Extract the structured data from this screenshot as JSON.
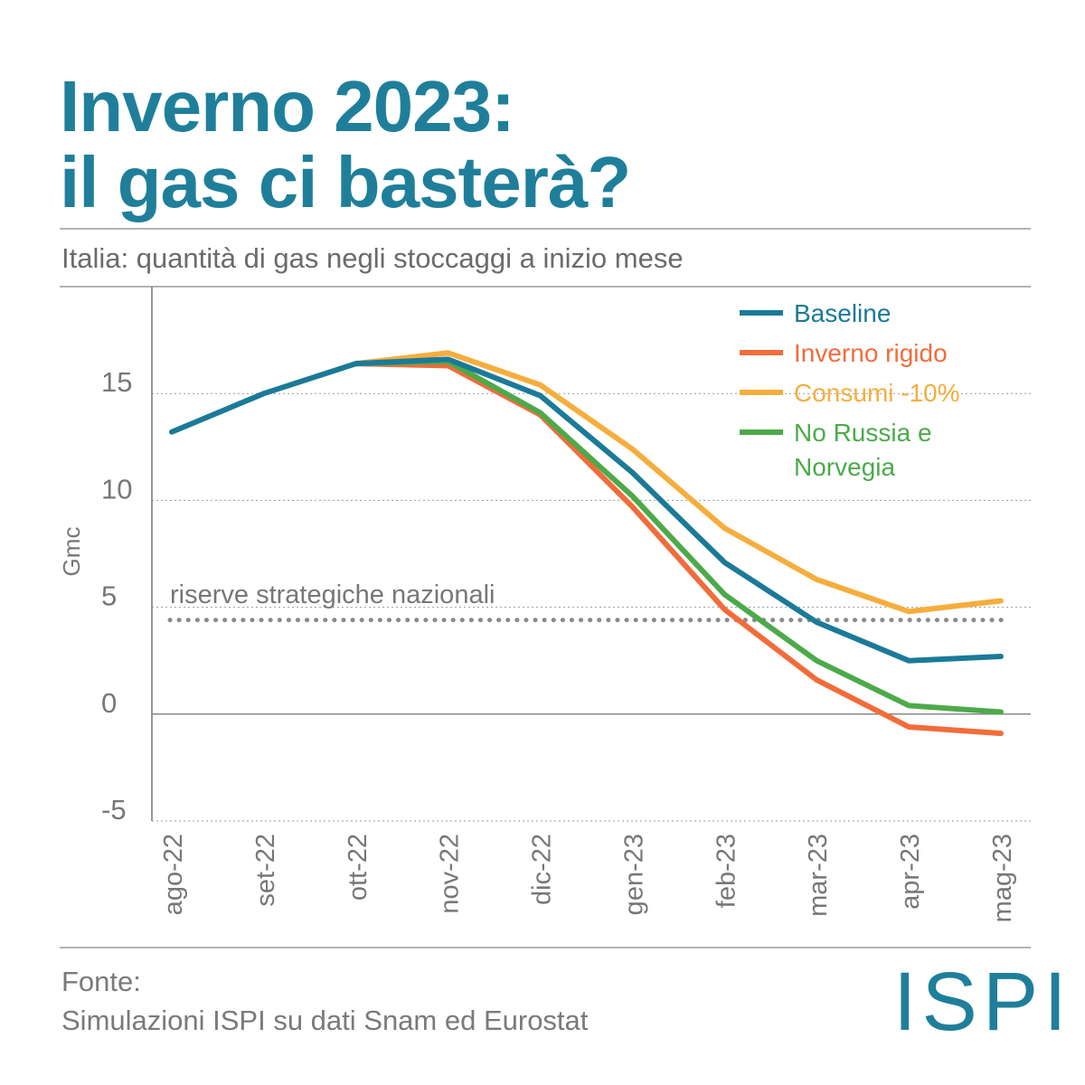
{
  "header": {
    "title": [
      "Inverno 2023:",
      "il gas ci basterà?"
    ],
    "subtitle": "Italia: quantità di gas negli stoccaggi a inizio mese"
  },
  "chart_data": {
    "type": "line",
    "y_label": "Gmc",
    "categories": [
      "ago-22",
      "set-22",
      "ott-22",
      "nov-22",
      "dic-22",
      "gen-23",
      "feb-23",
      "mar-23",
      "apr-23",
      "mag-23"
    ],
    "series": [
      {
        "name": "Baseline",
        "color": "#1b7a98",
        "values": [
          13.2,
          15.0,
          16.4,
          16.6,
          14.9,
          11.3,
          7.1,
          4.3,
          2.5,
          2.7
        ]
      },
      {
        "name": "Inverno rigido",
        "color": "#f26c3a",
        "values": [
          null,
          null,
          16.4,
          16.3,
          14.0,
          9.7,
          4.9,
          1.6,
          -0.6,
          -0.9
        ]
      },
      {
        "name": "Consumi -10%",
        "color": "#f5ae3d",
        "values": [
          null,
          null,
          16.4,
          16.9,
          15.4,
          12.4,
          8.7,
          6.3,
          4.8,
          5.3
        ]
      },
      {
        "name": "No Russia e Norvegia",
        "color": "#4caa4a",
        "values": [
          null,
          null,
          16.4,
          16.5,
          14.1,
          10.2,
          5.6,
          2.5,
          0.4,
          0.1
        ]
      }
    ],
    "reference_line": {
      "value": 4.4,
      "label": "riserve strategiche nazionali"
    },
    "ylim": [
      -5,
      20
    ],
    "yticks": [
      -5,
      0,
      5,
      10,
      15
    ],
    "grid": true,
    "legend": "top-right"
  },
  "footer": {
    "source": [
      "Fonte:",
      "Simulazioni ISPI su dati Snam ed Eurostat"
    ],
    "logo": "ISPI"
  }
}
